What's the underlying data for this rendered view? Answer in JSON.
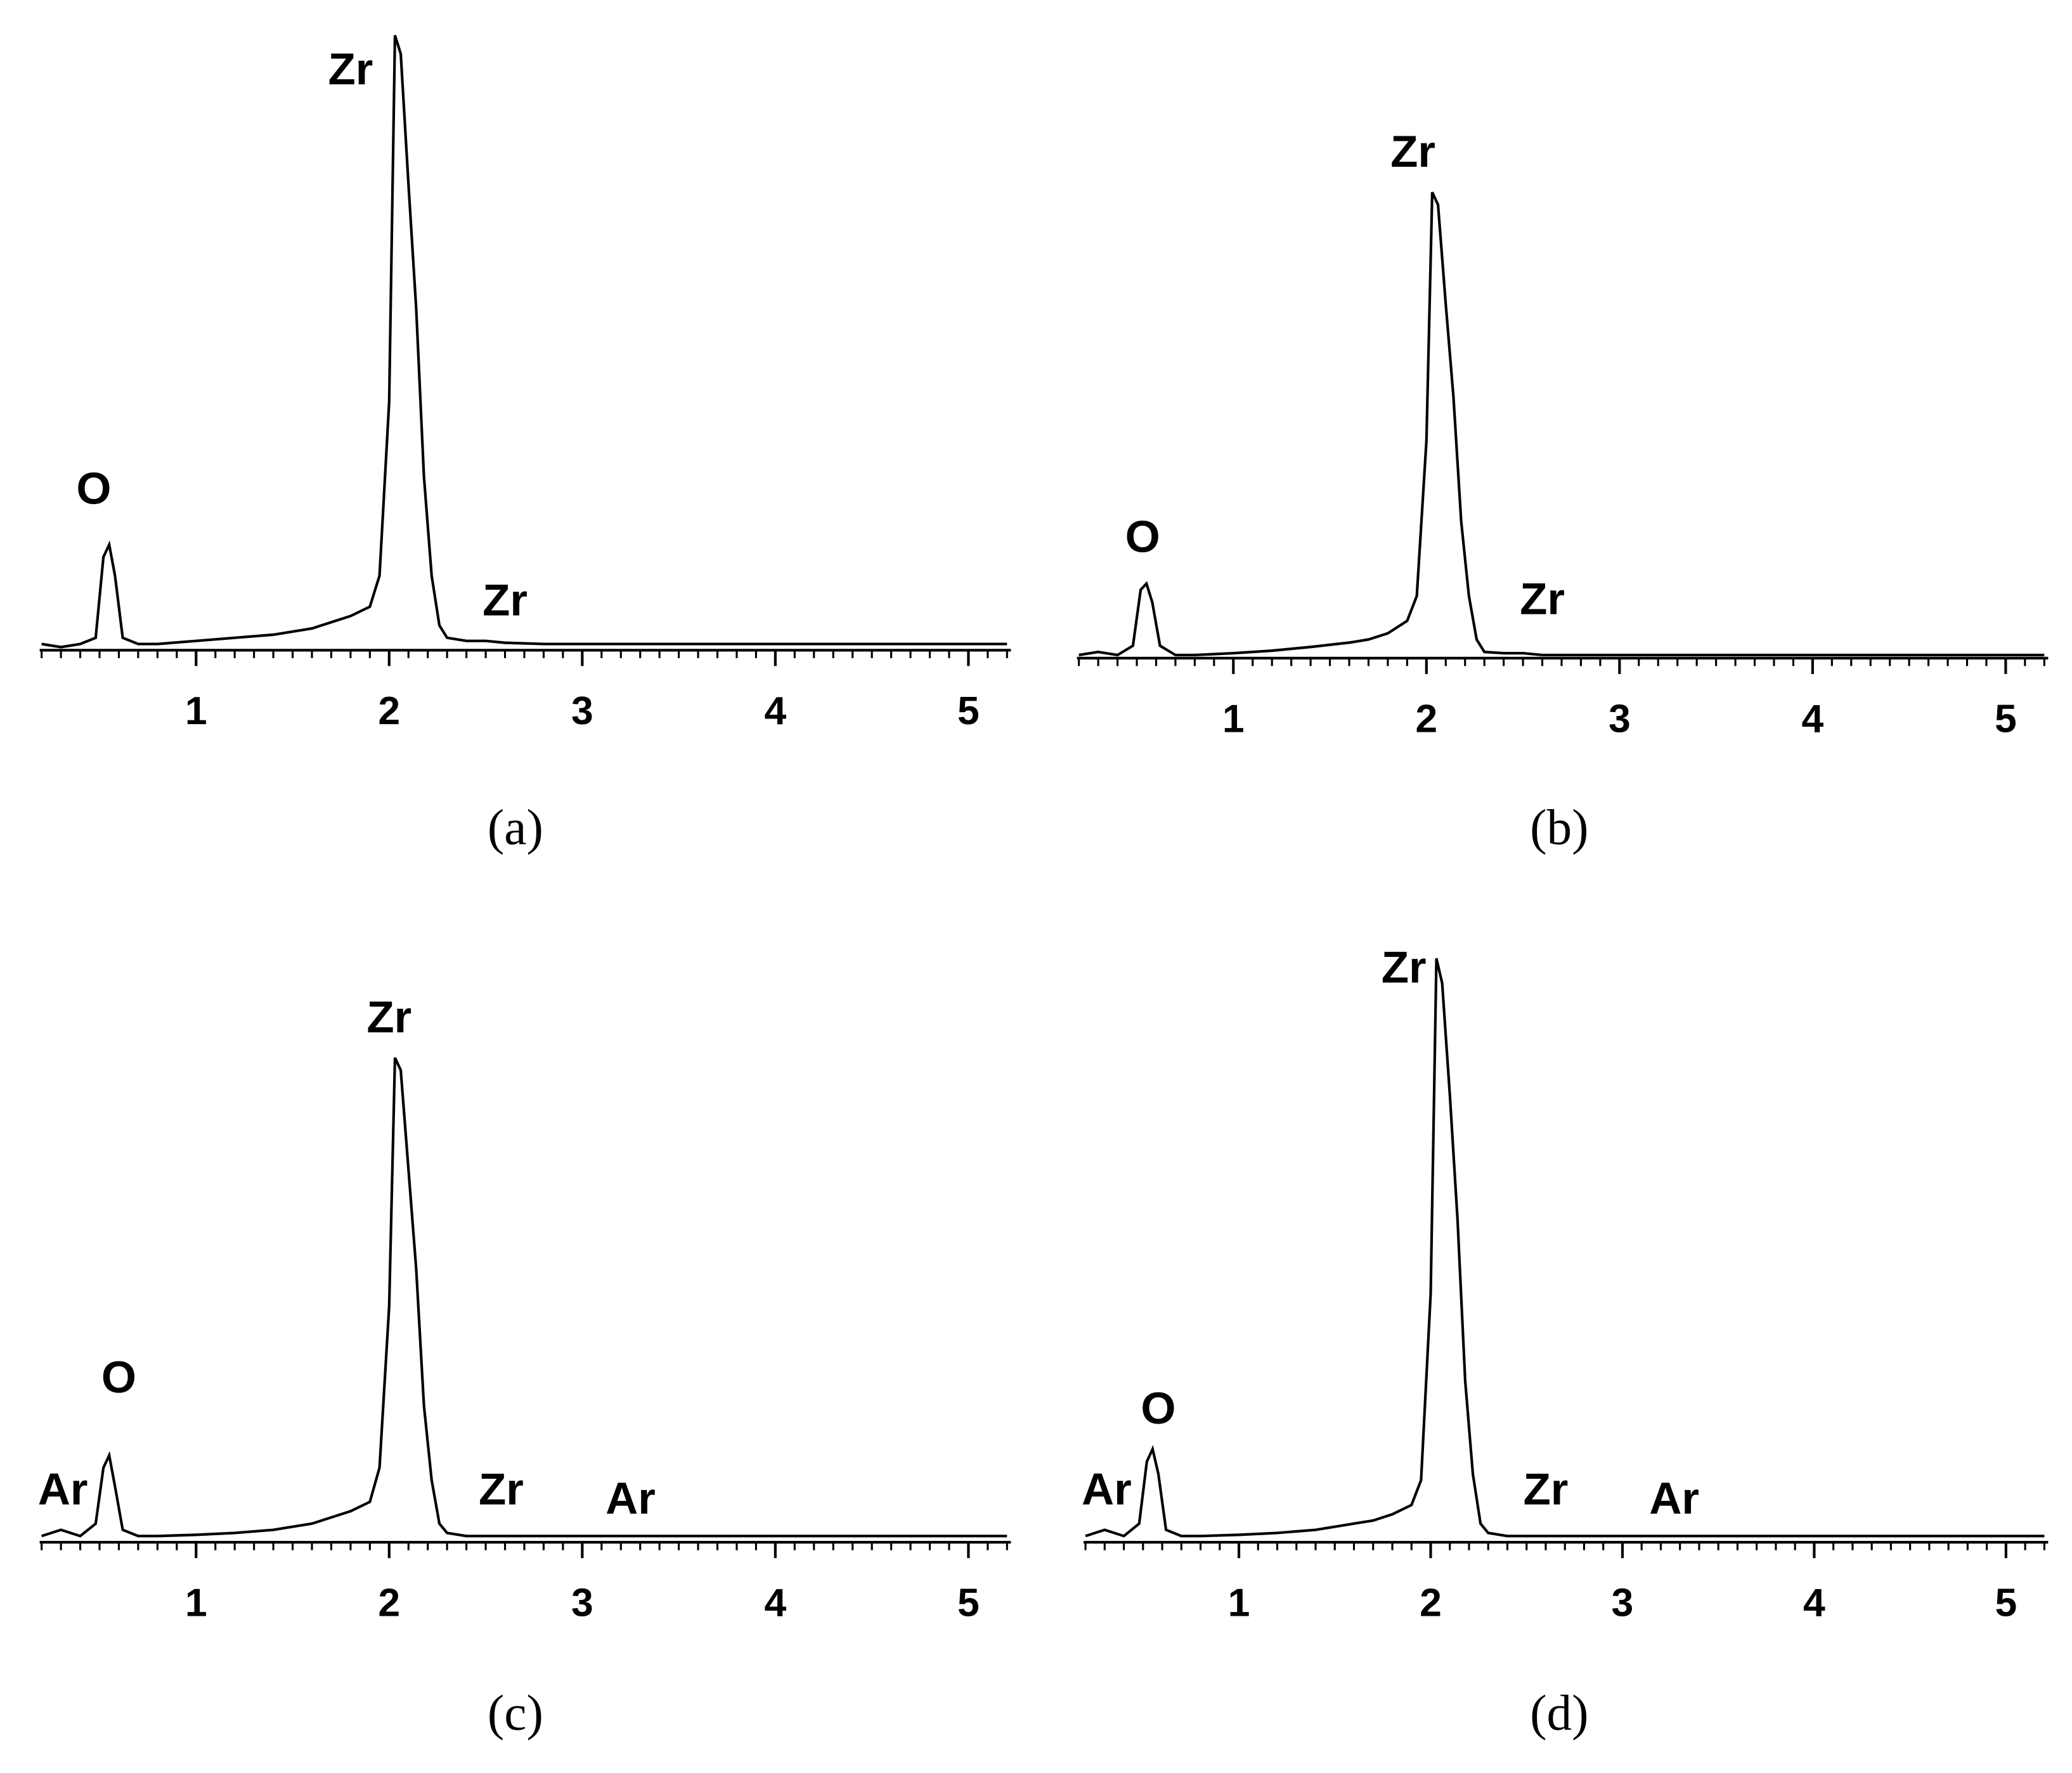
{
  "chart_data": [
    {
      "type": "line",
      "label": "(a)",
      "x": [
        0.2,
        0.3,
        0.4,
        0.48,
        0.52,
        0.55,
        0.58,
        0.62,
        0.7,
        0.8,
        1.0,
        1.2,
        1.4,
        1.6,
        1.7,
        1.8,
        1.9,
        1.95,
        2.0,
        2.03,
        2.06,
        2.1,
        2.14,
        2.18,
        2.22,
        2.26,
        2.3,
        2.4,
        2.5,
        2.6,
        2.8,
        3.0,
        3.5,
        4.0,
        4.5,
        5.0,
        5.2
      ],
      "series": [
        {
          "color": "#000000",
          "values": [
            1,
            0.5,
            1,
            2,
            15,
            17,
            12,
            2,
            1,
            1,
            1.5,
            2,
            2.5,
            3.5,
            4.5,
            5.5,
            7,
            12,
            40,
            99,
            96,
            75,
            55,
            28,
            12,
            4,
            2,
            1.5,
            1.5,
            1.2,
            1,
            1,
            1,
            1,
            1,
            1,
            1
          ]
        }
      ],
      "xlim": [
        0.19,
        5.22
      ],
      "xticks": [
        1,
        2,
        3,
        4,
        5
      ],
      "ylim": [
        0,
        100
      ],
      "annotations": [
        {
          "text": "O",
          "x": 0.47,
          "y": 25.5
        },
        {
          "text": "Zr",
          "x": 1.8,
          "y": 93
        },
        {
          "text": "Zr",
          "x": 2.6,
          "y": 7.5
        }
      ]
    },
    {
      "type": "line",
      "label": "(b)",
      "x": [
        0.2,
        0.3,
        0.4,
        0.48,
        0.52,
        0.55,
        0.58,
        0.62,
        0.7,
        0.8,
        1.0,
        1.2,
        1.4,
        1.6,
        1.7,
        1.8,
        1.9,
        1.95,
        2.0,
        2.03,
        2.06,
        2.1,
        2.14,
        2.18,
        2.22,
        2.26,
        2.3,
        2.4,
        2.5,
        2.6,
        2.8,
        3.0,
        3.5,
        4.0,
        4.5,
        5.0,
        5.2
      ],
      "series": [
        {
          "color": "#000000",
          "values": [
            0.5,
            1,
            0.5,
            2,
            11,
            12,
            9,
            2,
            0.5,
            0.5,
            0.8,
            1.2,
            1.8,
            2.5,
            3,
            4,
            6,
            10,
            35,
            75,
            73,
            57,
            42,
            22,
            10,
            3,
            1,
            0.8,
            0.8,
            0.5,
            0.5,
            0.5,
            0.5,
            0.5,
            0.5,
            0.5,
            0.5
          ]
        }
      ],
      "xlim": [
        0.19,
        5.22
      ],
      "xticks": [
        1,
        2,
        3,
        4,
        5
      ],
      "ylim": [
        0,
        100
      ],
      "annotations": [
        {
          "text": "O",
          "x": 0.53,
          "y": 19
        },
        {
          "text": "Zr",
          "x": 1.93,
          "y": 81
        },
        {
          "text": "Zr",
          "x": 2.6,
          "y": 9
        }
      ]
    },
    {
      "type": "line",
      "label": "(c)",
      "x": [
        0.2,
        0.3,
        0.4,
        0.48,
        0.52,
        0.55,
        0.58,
        0.62,
        0.7,
        0.8,
        1.0,
        1.2,
        1.4,
        1.6,
        1.7,
        1.8,
        1.9,
        1.95,
        2.0,
        2.03,
        2.06,
        2.1,
        2.14,
        2.18,
        2.22,
        2.26,
        2.3,
        2.4,
        2.5,
        2.6,
        2.8,
        3.0,
        3.5,
        4.0,
        4.5,
        5.0,
        5.2
      ],
      "series": [
        {
          "color": "#000000",
          "values": [
            1,
            2,
            1,
            3,
            12,
            14,
            9,
            2,
            1,
            1,
            1.2,
            1.5,
            2,
            3,
            4,
            5,
            6.5,
            12,
            38,
            78,
            76,
            60,
            44,
            22,
            10,
            3,
            1.5,
            1,
            1,
            1,
            1,
            1,
            1,
            1,
            1,
            1,
            1
          ]
        }
      ],
      "xlim": [
        0.19,
        5.22
      ],
      "xticks": [
        1,
        2,
        3,
        4,
        5
      ],
      "ylim": [
        0,
        100
      ],
      "annotations": [
        {
          "text": "Ar",
          "x": 0.31,
          "y": 8
        },
        {
          "text": "O",
          "x": 0.6,
          "y": 26
        },
        {
          "text": "Zr",
          "x": 2.0,
          "y": 84
        },
        {
          "text": "Zr",
          "x": 2.58,
          "y": 8
        },
        {
          "text": "Ar",
          "x": 3.25,
          "y": 6.5
        }
      ]
    },
    {
      "type": "line",
      "label": "(d)",
      "x": [
        0.2,
        0.3,
        0.4,
        0.48,
        0.52,
        0.55,
        0.58,
        0.62,
        0.7,
        0.8,
        1.0,
        1.2,
        1.4,
        1.6,
        1.7,
        1.8,
        1.9,
        1.95,
        2.0,
        2.03,
        2.06,
        2.1,
        2.14,
        2.18,
        2.22,
        2.26,
        2.3,
        2.4,
        2.5,
        2.6,
        2.8,
        3.0,
        3.5,
        4.0,
        4.5,
        5.0,
        5.2
      ],
      "series": [
        {
          "color": "#000000",
          "values": [
            1,
            2,
            1,
            3,
            13,
            15,
            11,
            2,
            1,
            1,
            1.2,
            1.5,
            2,
            3,
            3.5,
            4.5,
            6,
            10,
            40,
            94,
            90,
            72,
            52,
            26,
            11,
            3,
            1.5,
            1,
            1,
            1,
            1,
            1,
            1,
            1,
            1,
            1,
            1
          ]
        }
      ],
      "xlim": [
        0.19,
        5.22
      ],
      "xticks": [
        1,
        2,
        3,
        4,
        5
      ],
      "ylim": [
        0,
        100
      ],
      "annotations": [
        {
          "text": "Ar",
          "x": 0.31,
          "y": 8
        },
        {
          "text": "O",
          "x": 0.58,
          "y": 21
        },
        {
          "text": "Zr",
          "x": 1.86,
          "y": 92
        },
        {
          "text": "Zr",
          "x": 2.6,
          "y": 8
        },
        {
          "text": "Ar",
          "x": 3.27,
          "y": 6.5
        }
      ]
    }
  ]
}
